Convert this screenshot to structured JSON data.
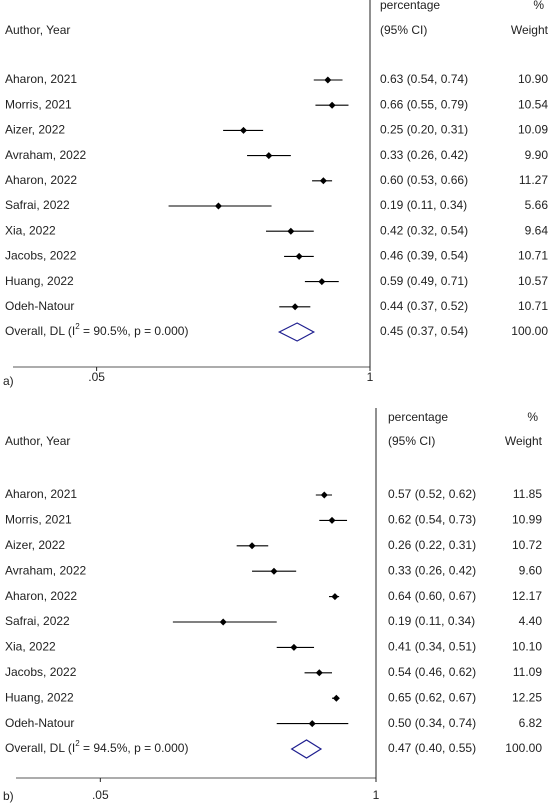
{
  "chart_data": [
    {
      "type": "forest",
      "panel_label": "a)",
      "column_headers": {
        "estimate_top": "percentage",
        "weight_top": "%",
        "study": "Author, Year",
        "estimate": "(95% CI)",
        "weight": "Weight"
      },
      "studies": [
        "Aharon, 2021",
        "Morris, 2021",
        "Aizer, 2022",
        "Avraham, 2022",
        "Aharon, 2022",
        "Safrai, 2022",
        "Xia, 2022",
        "Jacobs, 2022",
        "Huang, 2022",
        "Odeh-Natour"
      ],
      "values": [
        0.63,
        0.66,
        0.25,
        0.33,
        0.6,
        0.19,
        0.42,
        0.46,
        0.59,
        0.44
      ],
      "ci_low": [
        0.54,
        0.55,
        0.2,
        0.26,
        0.53,
        0.11,
        0.32,
        0.39,
        0.49,
        0.37
      ],
      "ci_high": [
        0.74,
        0.79,
        0.31,
        0.42,
        0.66,
        0.34,
        0.54,
        0.54,
        0.71,
        0.52
      ],
      "value_labels": [
        "0.63 (0.54, 0.74)",
        "0.66 (0.55, 0.79)",
        "0.25 (0.20, 0.31)",
        "0.33 (0.26, 0.42)",
        "0.60 (0.53, 0.66)",
        "0.19 (0.11, 0.34)",
        "0.42 (0.32, 0.54)",
        "0.46 (0.39, 0.54)",
        "0.59 (0.49, 0.71)",
        "0.44 (0.37, 0.52)"
      ],
      "weights": [
        "10.90",
        "10.54",
        "10.09",
        "9.90",
        "11.27",
        "5.66",
        "9.64",
        "10.71",
        "10.57",
        "10.71"
      ],
      "overall": {
        "label": "Overall, DL (I",
        "label_sup": "2",
        "label_rest": " = 90.5%, p = 0.000)",
        "value": 0.45,
        "ci_low": 0.37,
        "ci_high": 0.54,
        "value_label": "0.45 (0.37, 0.54)",
        "weight": "100.00",
        "color": "#1f1f8f"
      },
      "color": "#000000",
      "log_scale": true,
      "xlim": [
        0.02,
        1
      ],
      "xticks": [
        {
          "value": 0.05,
          "label": ".05"
        },
        1
      ],
      "reference_line": 1
    },
    {
      "type": "forest",
      "panel_label": "b)",
      "column_headers": {
        "estimate_top": "percentage",
        "weight_top": "%",
        "study": "Author, Year",
        "estimate": "(95% CI)",
        "weight": "Weight"
      },
      "studies": [
        "Aharon, 2021",
        "Morris, 2021",
        "Aizer, 2022",
        "Avraham, 2022",
        "Aharon, 2022",
        "Safrai, 2022",
        "Xia, 2022",
        "Jacobs, 2022",
        "Huang, 2022",
        "Odeh-Natour"
      ],
      "values": [
        0.57,
        0.62,
        0.26,
        0.33,
        0.64,
        0.19,
        0.41,
        0.54,
        0.65,
        0.5
      ],
      "ci_low": [
        0.52,
        0.54,
        0.22,
        0.26,
        0.6,
        0.11,
        0.34,
        0.46,
        0.62,
        0.34
      ],
      "ci_high": [
        0.62,
        0.73,
        0.31,
        0.42,
        0.67,
        0.34,
        0.51,
        0.62,
        0.67,
        0.74
      ],
      "value_labels": [
        "0.57 (0.52, 0.62)",
        "0.62 (0.54, 0.73)",
        "0.26 (0.22, 0.31)",
        "0.33 (0.26, 0.42)",
        "0.64 (0.60, 0.67)",
        "0.19 (0.11, 0.34)",
        "0.41 (0.34, 0.51)",
        "0.54 (0.46, 0.62)",
        "0.65 (0.62, 0.67)",
        "0.50 (0.34, 0.74)"
      ],
      "weights": [
        "11.85",
        "10.99",
        "10.72",
        "9.60",
        "12.17",
        "4.40",
        "10.10",
        "11.09",
        "12.25",
        "6.82"
      ],
      "overall": {
        "label": "Overall, DL (I",
        "label_sup": "2",
        "label_rest": " = 94.5%, p = 0.000)",
        "value": 0.47,
        "ci_low": 0.4,
        "ci_high": 0.55,
        "value_label": "0.47 (0.40, 0.55)",
        "weight": "100.00",
        "color": "#1f1f8f"
      },
      "color": "#000000",
      "log_scale": true,
      "xlim": [
        0.02,
        1
      ],
      "xticks": [
        {
          "value": 0.05,
          "label": ".05"
        },
        1
      ],
      "reference_line": 1
    }
  ]
}
